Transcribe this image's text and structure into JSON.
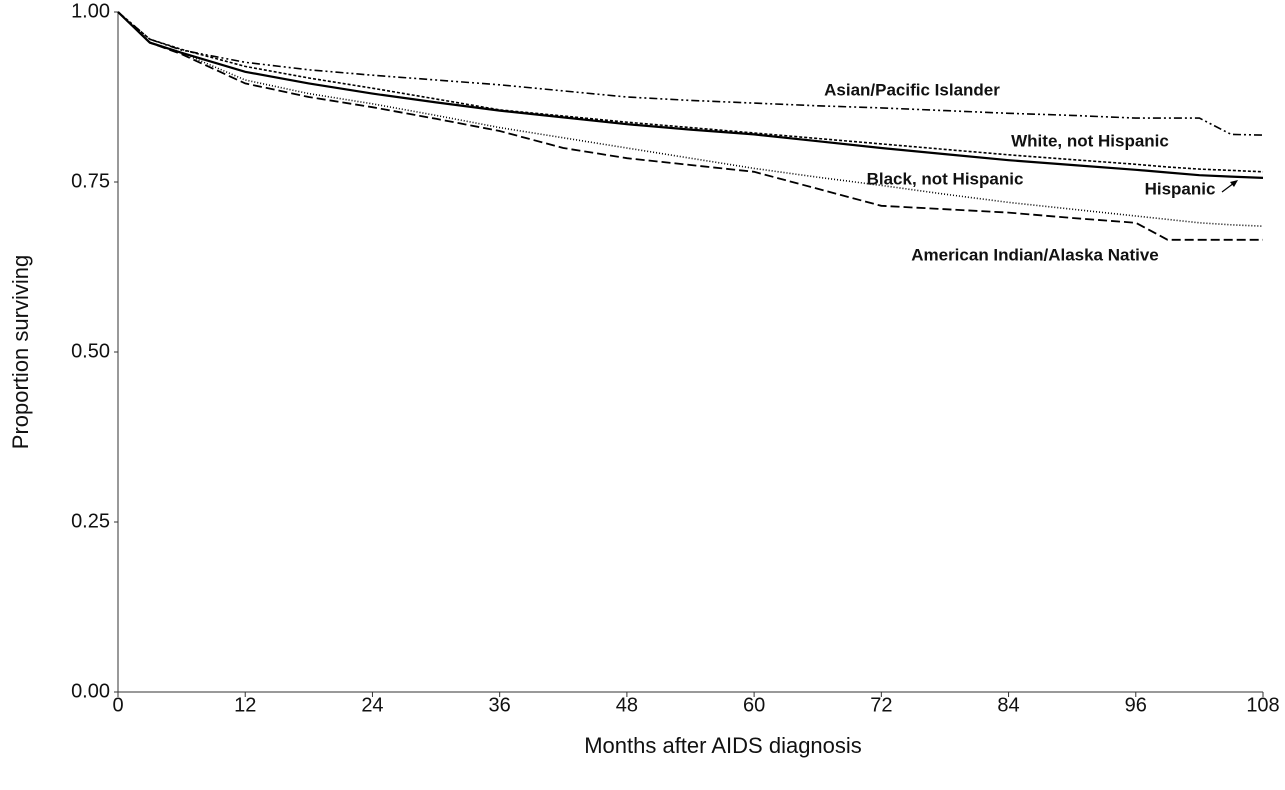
{
  "chart_data": {
    "type": "line",
    "xlabel": "Months after AIDS diagnosis",
    "ylabel": "Proportion surviving",
    "x": [
      0,
      3,
      6,
      12,
      18,
      24,
      30,
      36,
      42,
      48,
      54,
      60,
      66,
      72,
      78,
      84,
      90,
      96,
      99,
      102,
      105,
      108
    ],
    "series": [
      {
        "name": "Asian/Pacific Islander",
        "color": "#000000",
        "dash": "8 3 2 3 2 3",
        "width": 1.6,
        "values": [
          1,
          0.96,
          0.944,
          0.926,
          0.915,
          0.907,
          0.9,
          0.893,
          0.884,
          0.875,
          0.87,
          0.866,
          0.862,
          0.859,
          0.855,
          0.851,
          0.848,
          0.844,
          0.844,
          0.844,
          0.82,
          0.819
        ]
      },
      {
        "name": "White, not Hispanic",
        "color": "#000000",
        "dash": "3 2",
        "width": 1.6,
        "values": [
          1,
          0.96,
          0.945,
          0.92,
          0.903,
          0.888,
          0.872,
          0.856,
          0.847,
          0.838,
          0.83,
          0.822,
          0.814,
          0.806,
          0.798,
          0.79,
          0.783,
          0.776,
          0.772,
          0.769,
          0.767,
          0.765
        ]
      },
      {
        "name": "Hispanic",
        "color": "#000000",
        "dash": "none",
        "width": 2.2,
        "values": [
          1,
          0.955,
          0.94,
          0.912,
          0.895,
          0.88,
          0.867,
          0.855,
          0.845,
          0.835,
          0.827,
          0.82,
          0.81,
          0.8,
          0.791,
          0.782,
          0.775,
          0.768,
          0.764,
          0.76,
          0.758,
          0.756
        ]
      },
      {
        "name": "Black, not Hispanic",
        "color": "#000000",
        "dash": "1 2",
        "width": 1.6,
        "values": [
          1,
          0.955,
          0.94,
          0.9,
          0.88,
          0.865,
          0.848,
          0.83,
          0.815,
          0.8,
          0.785,
          0.77,
          0.757,
          0.745,
          0.732,
          0.72,
          0.71,
          0.7,
          0.695,
          0.69,
          0.687,
          0.685
        ]
      },
      {
        "name": "American Indian/Alaska Native",
        "color": "#000000",
        "dash": "9 4",
        "width": 1.8,
        "values": [
          1,
          0.955,
          0.938,
          0.895,
          0.875,
          0.86,
          0.843,
          0.825,
          0.8,
          0.785,
          0.775,
          0.765,
          0.74,
          0.715,
          0.71,
          0.705,
          0.697,
          0.69,
          0.665,
          0.665,
          0.665,
          0.665
        ]
      }
    ],
    "xlim": [
      0,
      108
    ],
    "ylim": [
      0,
      1
    ],
    "xticks": [
      0,
      12,
      24,
      36,
      48,
      60,
      72,
      84,
      96,
      108
    ],
    "yticks": [
      {
        "value": 0,
        "label": "0.00"
      },
      0.25,
      {
        "value": 0.5,
        "label": "0.50"
      },
      0.75,
      {
        "value": 1,
        "label": "1.00"
      }
    ]
  }
}
